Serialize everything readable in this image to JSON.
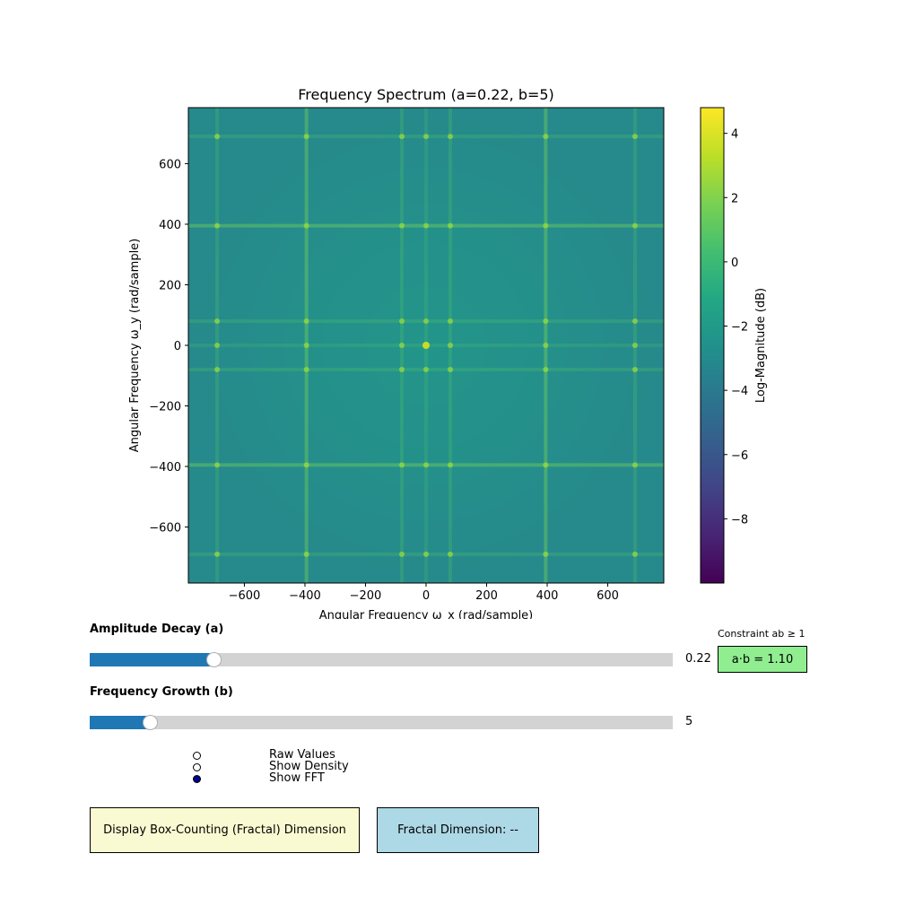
{
  "chart_data": {
    "type": "heatmap",
    "title": "Frequency Spectrum (a=0.22, b=5)",
    "xlabel": "Angular Frequency ω_x (rad/sample)",
    "ylabel": "Angular Frequency ω_y (rad/sample)",
    "xlim": [
      -785,
      785
    ],
    "ylim": [
      -785,
      785
    ],
    "x_ticks": [
      -600,
      -400,
      -200,
      0,
      200,
      400,
      600
    ],
    "y_ticks": [
      -600,
      -400,
      -200,
      0,
      200,
      400,
      600
    ],
    "x_tick_labels": [
      "−600",
      "−400",
      "−200",
      "0",
      "200",
      "400",
      "600"
    ],
    "y_tick_labels": [
      "−600",
      "−400",
      "−200",
      "0",
      "200",
      "400",
      "600"
    ],
    "spectral_peaks": [
      80,
      395,
      690
    ],
    "colormap": "viridis",
    "colorbar": {
      "label": "Log-Magnitude (dB)",
      "range": [
        -10,
        4.8
      ],
      "ticks": [
        -8,
        -6,
        -4,
        -2,
        0,
        2,
        4
      ],
      "tick_labels": [
        "−8",
        "−6",
        "−4",
        "−2",
        "0",
        "2",
        "4"
      ]
    }
  },
  "controls": {
    "amplitude": {
      "label": "Amplitude Decay (a)",
      "value": 0.22,
      "min": 0.01,
      "max": 1.0,
      "display": "0.22"
    },
    "frequency": {
      "label": "Frequency Growth (b)",
      "value": 5,
      "min": 1,
      "max": 40,
      "display": "5"
    },
    "constraint": {
      "caption": "Constraint ab ≥ 1",
      "text": "a·b = 1.10",
      "color": "#90ee90"
    },
    "radio": [
      {
        "label": "Raw Values",
        "checked": false
      },
      {
        "label": "Show Density",
        "checked": false
      },
      {
        "label": "Show FFT",
        "checked": true
      }
    ],
    "fractal_button": {
      "label": "Display Box-Counting (Fractal) Dimension",
      "color": "#fafad2"
    },
    "fractal_result": {
      "label": "Fractal Dimension: --",
      "color": "#add8e6"
    }
  }
}
